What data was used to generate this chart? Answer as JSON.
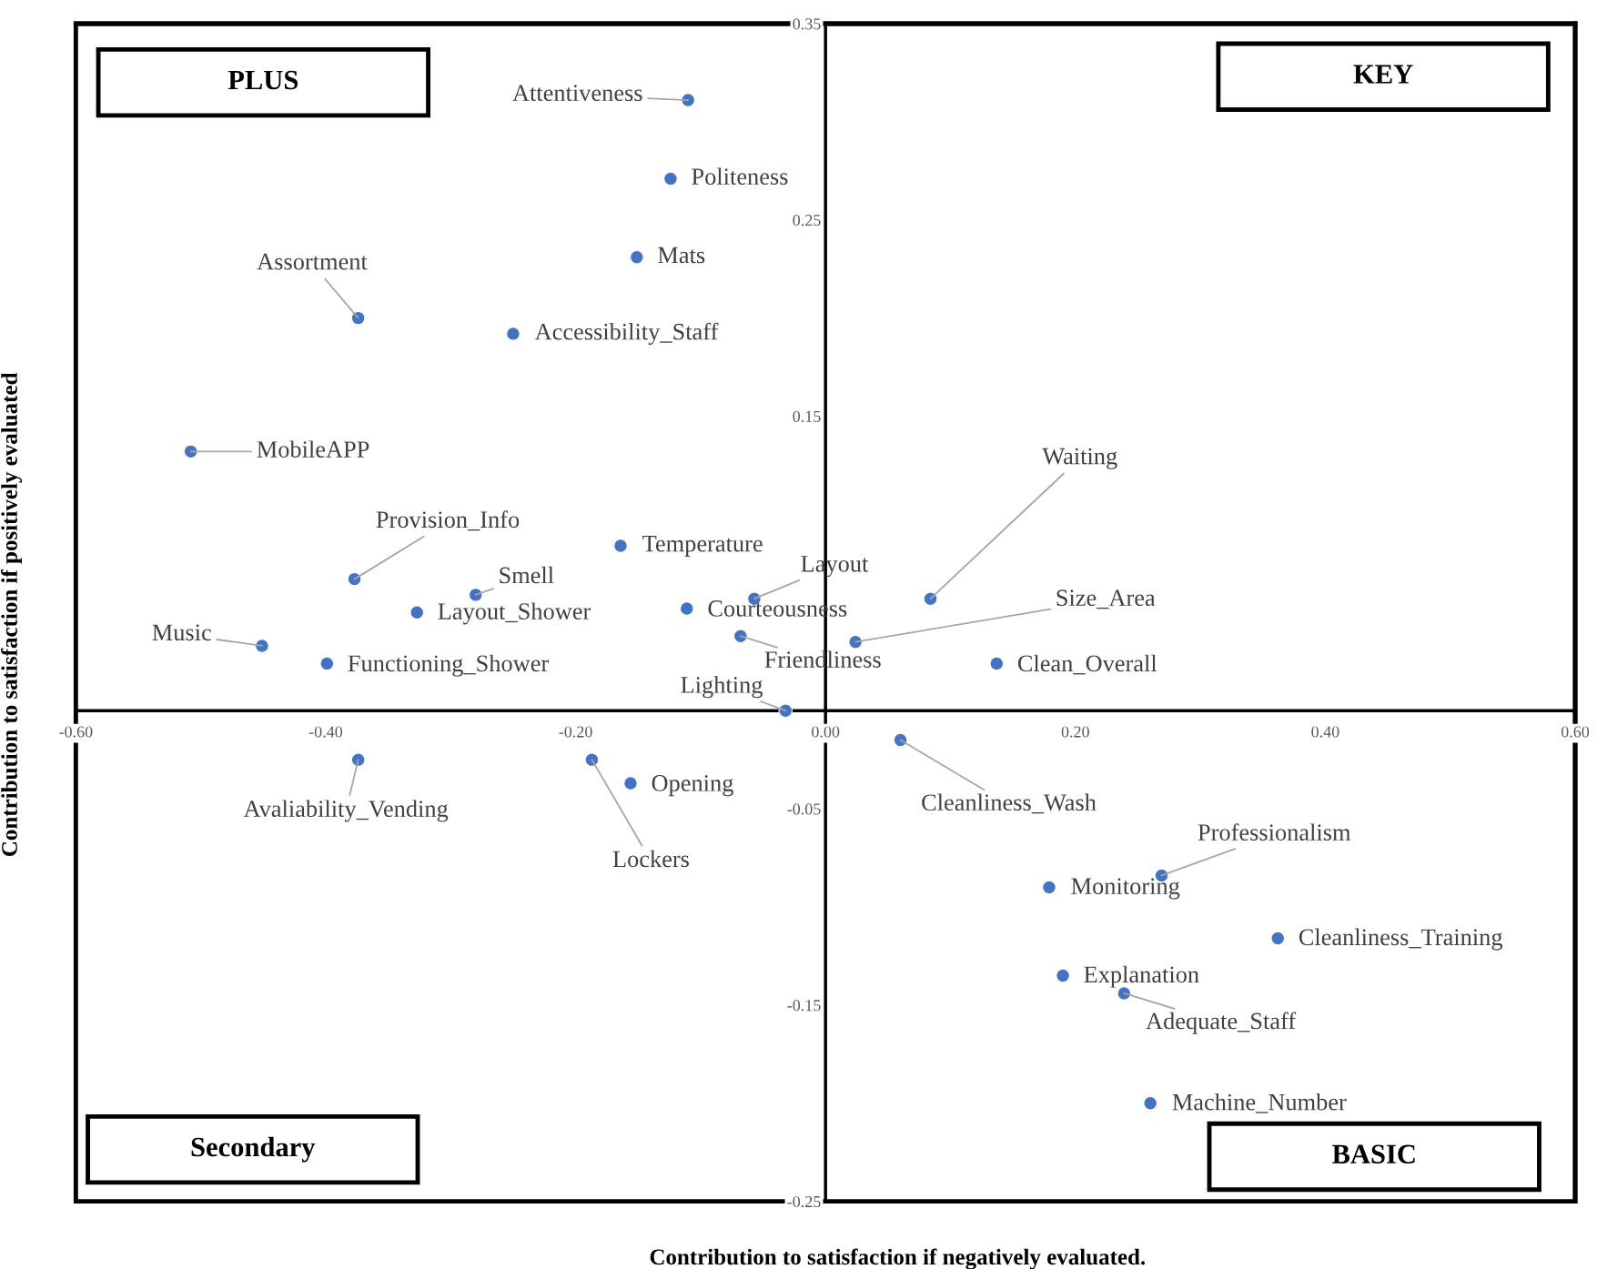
{
  "chart_data": {
    "type": "scatter",
    "xlabel": "Contribution to satisfaction if negatively evaluated.",
    "ylabel": "Contribution to satisfaction if positively evaluated",
    "x": [
      -0.11,
      -0.124,
      -0.151,
      -0.374,
      -0.25,
      -0.508,
      -0.164,
      -0.377,
      -0.28,
      -0.057,
      0.084,
      -0.327,
      -0.111,
      0.024,
      -0.068,
      -0.451,
      0.137,
      -0.399,
      -0.032,
      0.06,
      -0.374,
      -0.187,
      -0.156,
      0.269,
      0.179,
      0.362,
      0.19,
      0.239,
      0.26
    ],
    "series": [
      {
        "color": "#4472c4",
        "values": [
          0.311,
          0.271,
          0.231,
          0.2,
          0.192,
          0.132,
          0.084,
          0.067,
          0.059,
          0.057,
          0.057,
          0.05,
          0.052,
          0.035,
          0.038,
          0.033,
          0.024,
          0.024,
          0.0,
          -0.015,
          -0.025,
          -0.025,
          -0.037,
          -0.084,
          -0.09,
          -0.116,
          -0.135,
          -0.144,
          -0.2
        ],
        "value_labels": [
          "Attentiveness",
          "Politeness",
          "Mats",
          "Assortment",
          "Accessibility_Staff",
          "MobileAPP",
          "Temperature",
          "Provision_Info",
          "Smell",
          "Layout",
          "Waiting",
          "Layout_Shower",
          "Courteousness",
          "Size_Area",
          "Friendliness",
          "Music",
          "Clean_Overall",
          "Functioning_Shower",
          "Lighting",
          "Cleanliness_Wash",
          "Avaliability_Vending",
          "Lockers",
          "Opening",
          "Professionalism",
          "Monitoring",
          "Cleanliness_Training",
          "Explanation",
          "Adequate_Staff",
          "Machine_Number"
        ]
      }
    ],
    "xlim": [
      -0.6,
      0.6
    ],
    "xticks": [
      {
        "value": -0.6,
        "label": "-0.60"
      },
      {
        "value": -0.4,
        "label": "-0.40"
      },
      {
        "value": -0.2,
        "label": "-0.20"
      },
      {
        "value": 0,
        "label": "0.00"
      },
      {
        "value": 0.2,
        "label": "0.20"
      },
      {
        "value": 0.4,
        "label": "0.40"
      },
      {
        "value": 0.6,
        "label": "0.60"
      }
    ],
    "ylim": [
      -0.25,
      0.35
    ],
    "yticks": [
      0.35,
      0.25,
      0.15,
      -0.05,
      -0.15,
      -0.25
    ],
    "annotations": [
      "PLUS",
      "KEY",
      "Secondary",
      "BASIC"
    ],
    "marker": "circle",
    "grid": false,
    "legend": false
  }
}
